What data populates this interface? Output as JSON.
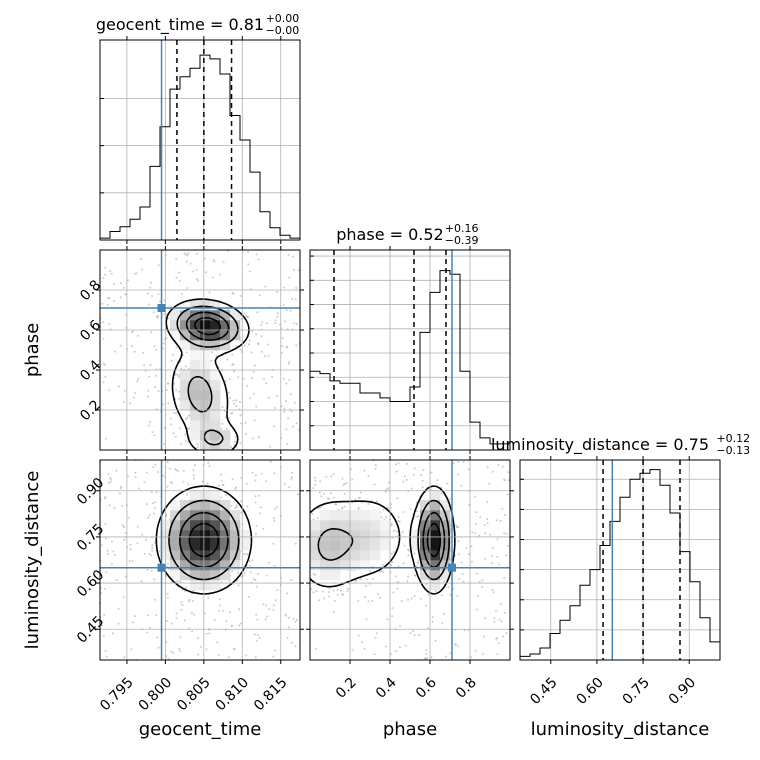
{
  "chart_data": {
    "type": "corner",
    "parameters": [
      {
        "name": "geocent_time",
        "title_prefix": "geocent_time = ",
        "median": "0.81",
        "err_plus": "+0.00",
        "err_minus": "−0.00",
        "range": [
          0.7915,
          0.8175
        ],
        "ticks": [
          0.795,
          0.8,
          0.805,
          0.81,
          0.815
        ],
        "tick_labels": [
          "0.795",
          "0.800",
          "0.805",
          "0.810",
          "0.815"
        ],
        "truth": 0.7995,
        "quantiles": [
          0.8015,
          0.805,
          0.8086
        ],
        "hist": {
          "bin_edges": [
            0.7915,
            0.7928,
            0.7941,
            0.7954,
            0.7967,
            0.798,
            0.7993,
            0.8006,
            0.8019,
            0.8032,
            0.8045,
            0.8058,
            0.8071,
            0.8084,
            0.8097,
            0.811,
            0.8123,
            0.8136,
            0.8149,
            0.8162,
            0.8175
          ],
          "counts": [
            2,
            9,
            14,
            22,
            35,
            78,
            120,
            160,
            173,
            182,
            196,
            192,
            176,
            132,
            106,
            72,
            30,
            13,
            5,
            2
          ],
          "ymax": 212,
          "yticks": [
            50,
            100,
            150
          ]
        }
      },
      {
        "name": "phase",
        "title_prefix": "phase = ",
        "median": "0.52",
        "err_plus": "+0.16",
        "err_minus": "−0.39",
        "range": [
          0.0,
          1.0
        ],
        "ticks": [
          0.2,
          0.4,
          0.6,
          0.8
        ],
        "tick_labels": [
          "0.2",
          "0.4",
          "0.6",
          "0.8"
        ],
        "truth": 0.71,
        "quantiles": [
          0.12,
          0.52,
          0.68
        ],
        "hist": {
          "bin_edges": [
            0.0,
            0.05,
            0.1,
            0.15,
            0.2,
            0.25,
            0.3,
            0.35,
            0.4,
            0.45,
            0.5,
            0.55,
            0.6,
            0.65,
            0.7,
            0.75,
            0.8,
            0.85,
            0.9,
            0.95,
            1.0
          ],
          "counts": [
            65,
            63,
            57,
            55,
            55,
            47,
            47,
            43,
            40,
            40,
            52,
            97,
            130,
            148,
            145,
            65,
            23,
            10,
            5,
            5
          ],
          "ymax": 165,
          "yticks": [
            20,
            40,
            60,
            80,
            100,
            120,
            140,
            160
          ]
        }
      },
      {
        "name": "luminosity_distance",
        "title_prefix": "luminosity_distance = ",
        "median": "0.75",
        "err_plus": "+0.12",
        "err_minus": "−0.13",
        "range": [
          0.35,
          1.0
        ],
        "ticks": [
          0.45,
          0.6,
          0.75,
          0.9
        ],
        "tick_labels": [
          "0.45",
          "0.60",
          "0.75",
          "0.90"
        ],
        "truth": 0.65,
        "quantiles": [
          0.62,
          0.75,
          0.87
        ],
        "hist": {
          "bin_edges": [
            0.35,
            0.3825,
            0.415,
            0.4475,
            0.48,
            0.5125,
            0.545,
            0.5775,
            0.61,
            0.6425,
            0.675,
            0.7075,
            0.74,
            0.7725,
            0.805,
            0.8375,
            0.87,
            0.9025,
            0.935,
            0.9675,
            1.0
          ],
          "counts": [
            3,
            5,
            10,
            22,
            33,
            45,
            62,
            75,
            95,
            115,
            135,
            150,
            155,
            158,
            145,
            122,
            90,
            65,
            35,
            15
          ],
          "ymax": 166,
          "yticks": [
            25,
            50,
            75,
            100,
            125,
            150
          ]
        }
      }
    ],
    "pairs": [
      {
        "x": "geocent_time",
        "y": "phase",
        "truth": [
          0.7995,
          0.71
        ],
        "density_peak": [
          0.8055,
          0.62
        ]
      },
      {
        "x": "geocent_time",
        "y": "luminosity_distance",
        "truth": [
          0.7995,
          0.65
        ],
        "density_peak": [
          0.805,
          0.74
        ]
      },
      {
        "x": "phase",
        "y": "luminosity_distance",
        "truth": [
          0.71,
          0.65
        ],
        "density_peak": [
          0.62,
          0.74
        ]
      }
    ],
    "xlabels": [
      "geocent_time",
      "phase",
      "luminosity_distance"
    ],
    "ylabels": [
      "",
      "phase",
      "luminosity_distance"
    ],
    "grid": true,
    "truth_color": "#4682b4"
  }
}
